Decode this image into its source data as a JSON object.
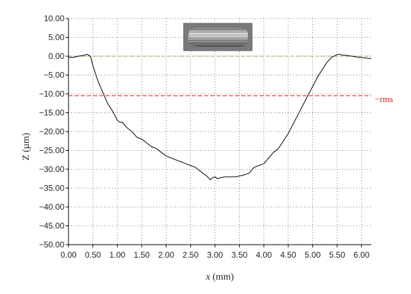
{
  "chart_data": {
    "type": "line",
    "xlabel": {
      "var": "x",
      "unit": " (mm)"
    },
    "ylabel": "Z (µm)",
    "xlim": [
      0,
      6.2
    ],
    "ylim": [
      -50,
      10
    ],
    "xticks": [
      "0.00",
      "0.50",
      "1.00",
      "1.50",
      "2.00",
      "2.50",
      "3.00",
      "3.50",
      "4.00",
      "4.50",
      "5.00",
      "5.50",
      "6.00"
    ],
    "yticks": [
      "10.00",
      "5.00",
      "0.00",
      "−5.00",
      "−10.00",
      "−15.00",
      "−20.00",
      "−25.00",
      "−30.00",
      "−35.00",
      "−40.00",
      "−45.00",
      "−50.00"
    ],
    "grid": "dotted",
    "profile": {
      "x": [
        0,
        0.1,
        0.2,
        0.3,
        0.38,
        0.45,
        0.5,
        0.55,
        0.6,
        0.7,
        0.8,
        0.9,
        1.0,
        1.05,
        1.1,
        1.2,
        1.3,
        1.4,
        1.5,
        1.6,
        1.7,
        1.8,
        1.9,
        2.0,
        2.1,
        2.2,
        2.3,
        2.4,
        2.5,
        2.6,
        2.7,
        2.8,
        2.85,
        2.9,
        2.95,
        3.0,
        3.05,
        3.1,
        3.2,
        3.3,
        3.4,
        3.5,
        3.6,
        3.7,
        3.8,
        3.9,
        4.0,
        4.1,
        4.2,
        4.3,
        4.4,
        4.5,
        4.6,
        4.7,
        4.8,
        4.9,
        5.0,
        5.1,
        5.2,
        5.3,
        5.4,
        5.5,
        5.55,
        5.6,
        5.7,
        5.8,
        5.9,
        6.0,
        6.1,
        6.2
      ],
      "y": [
        -0.3,
        -0.3,
        0.0,
        0.2,
        0.5,
        0.0,
        -2.5,
        -4.5,
        -6.5,
        -9.5,
        -12.5,
        -14.5,
        -17.0,
        -17.5,
        -17.5,
        -19.0,
        -20.0,
        -21.5,
        -22.0,
        -23.0,
        -24.0,
        -24.5,
        -25.5,
        -26.5,
        -27.0,
        -27.5,
        -28.0,
        -28.5,
        -29.0,
        -29.5,
        -30.5,
        -31.5,
        -32.0,
        -32.8,
        -32.3,
        -32.0,
        -32.5,
        -32.3,
        -32.0,
        -32.0,
        -32.0,
        -31.8,
        -31.5,
        -31.0,
        -29.5,
        -29.0,
        -28.5,
        -27.0,
        -25.5,
        -24.5,
        -22.5,
        -20.5,
        -18.0,
        -15.5,
        -13.0,
        -10.5,
        -8.0,
        -5.5,
        -3.5,
        -1.5,
        -0.2,
        0.4,
        0.5,
        0.3,
        0.2,
        0.0,
        -0.2,
        -0.3,
        -0.5,
        -0.7
      ]
    },
    "reference_lines": [
      {
        "y": 0.0,
        "color": "#7fb04f",
        "style": "dashed",
        "label": ""
      },
      {
        "y": -10.5,
        "color": "#cc1f1f",
        "style": "dashed",
        "label": "−rms"
      }
    ],
    "colors": {
      "profile": "#000000",
      "grid": "#777777",
      "axis": "#000000"
    }
  },
  "inset": {
    "kind": "surface-photo",
    "description_icon": "wear-scar-image"
  }
}
